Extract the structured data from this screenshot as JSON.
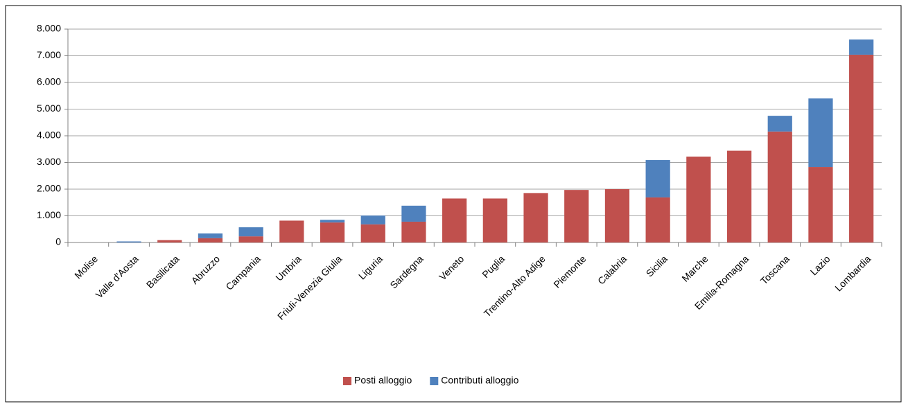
{
  "chart_data": {
    "type": "stacked-bar",
    "categories": [
      "Molise",
      "Valle d'Aosta",
      "Basilicata",
      "Abruzzo",
      "Campania",
      "Umbria",
      "Friuli-Venezia Giulia",
      "Liguria",
      "Sardegna",
      "Veneto",
      "Puglia",
      "Trentino-Alto Adige",
      "Piemonte",
      "Calabria",
      "Sicilia",
      "Marche",
      "Emilia-Romagna",
      "Toscana",
      "Lazio",
      "Lombardia"
    ],
    "series": [
      {
        "name": "Posti alloggio",
        "color": "#c0504d",
        "values": [
          0,
          0,
          90,
          160,
          230,
          820,
          750,
          680,
          780,
          1650,
          1650,
          1850,
          1970,
          2000,
          1690,
          3220,
          3440,
          4160,
          2830,
          7040
        ]
      },
      {
        "name": "Contributi alloggio",
        "color": "#4f81bd",
        "values": [
          0,
          40,
          0,
          180,
          340,
          0,
          100,
          330,
          600,
          0,
          0,
          0,
          0,
          0,
          1400,
          0,
          0,
          590,
          2570,
          570
        ]
      }
    ],
    "ylim": [
      0,
      8000
    ],
    "yticks": [
      0,
      {
        "value": 1000,
        "label": "1.000"
      },
      {
        "value": 2000,
        "label": "2.000"
      },
      {
        "value": 3000,
        "label": "3.000"
      },
      {
        "value": 4000,
        "label": "4.000"
      },
      {
        "value": 5000,
        "label": "5.000"
      },
      {
        "value": 6000,
        "label": "6.000"
      },
      {
        "value": 7000,
        "label": "7.000"
      },
      {
        "value": 8000,
        "label": "8.000"
      }
    ],
    "grid": true,
    "legend": "bottom"
  }
}
